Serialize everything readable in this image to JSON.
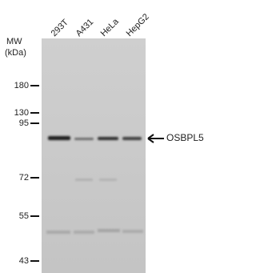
{
  "header": {
    "mw": "MW",
    "unit": "(kDa)"
  },
  "lanes": [
    "293T",
    "A431",
    "HeLa",
    "HepG2"
  ],
  "markers": [
    "180",
    "130",
    "95",
    "72",
    "55",
    "43"
  ],
  "target": "OSBPL5"
}
